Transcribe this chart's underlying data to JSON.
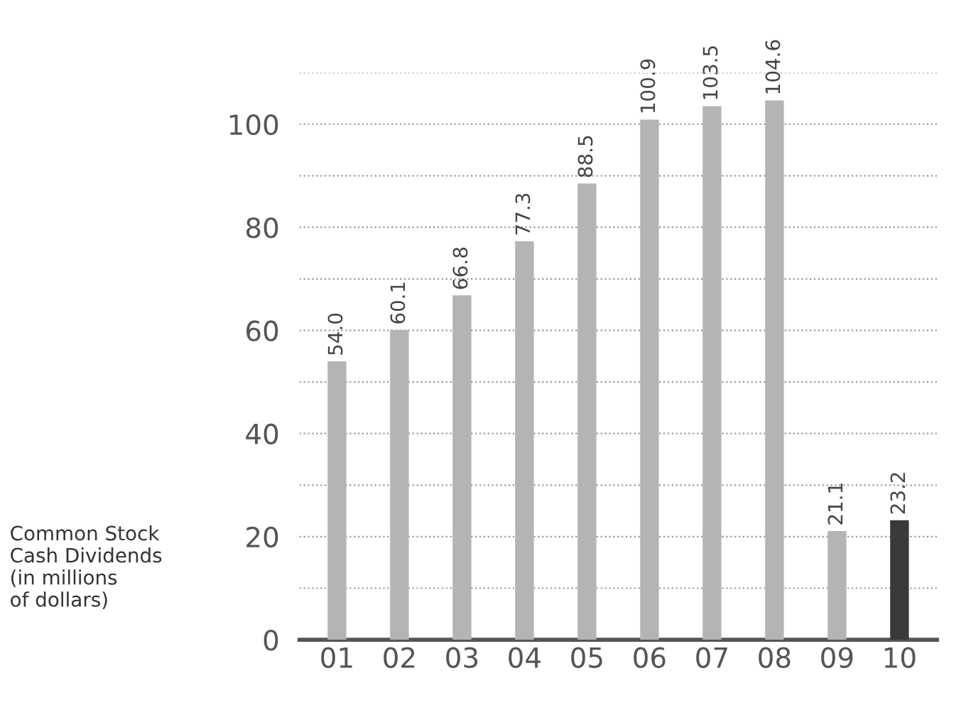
{
  "chart_data": {
    "type": "bar",
    "ylabel": "Common Stock\nCash Dividends\n(in millions\nof dollars)",
    "categories": [
      "01",
      "02",
      "03",
      "04",
      "05",
      "06",
      "07",
      "08",
      "09",
      "10"
    ],
    "values": [
      54.0,
      60.1,
      66.8,
      77.3,
      88.5,
      100.9,
      103.5,
      104.6,
      21.1,
      23.2
    ],
    "colors": [
      "#b4b4b4",
      "#b4b4b4",
      "#b4b4b4",
      "#b4b4b4",
      "#b4b4b4",
      "#b4b4b4",
      "#b4b4b4",
      "#b4b4b4",
      "#b4b4b4",
      "#3a3a3a"
    ],
    "value_labels": [
      "54.0",
      "60.1",
      "66.8",
      "77.3",
      "88.5",
      "100.9",
      "103.5",
      "104.6",
      "21.1",
      "23.2"
    ],
    "ylim": [
      0,
      110
    ],
    "yticks": [
      0,
      {
        "value": 10,
        "label": null
      },
      20,
      {
        "value": 30,
        "label": null
      },
      40,
      {
        "value": 50,
        "label": null
      },
      60,
      {
        "value": 70,
        "label": null
      },
      80,
      {
        "value": 90,
        "label": null
      },
      100,
      {
        "value": 110,
        "label": null
      }
    ],
    "grid": "y"
  }
}
